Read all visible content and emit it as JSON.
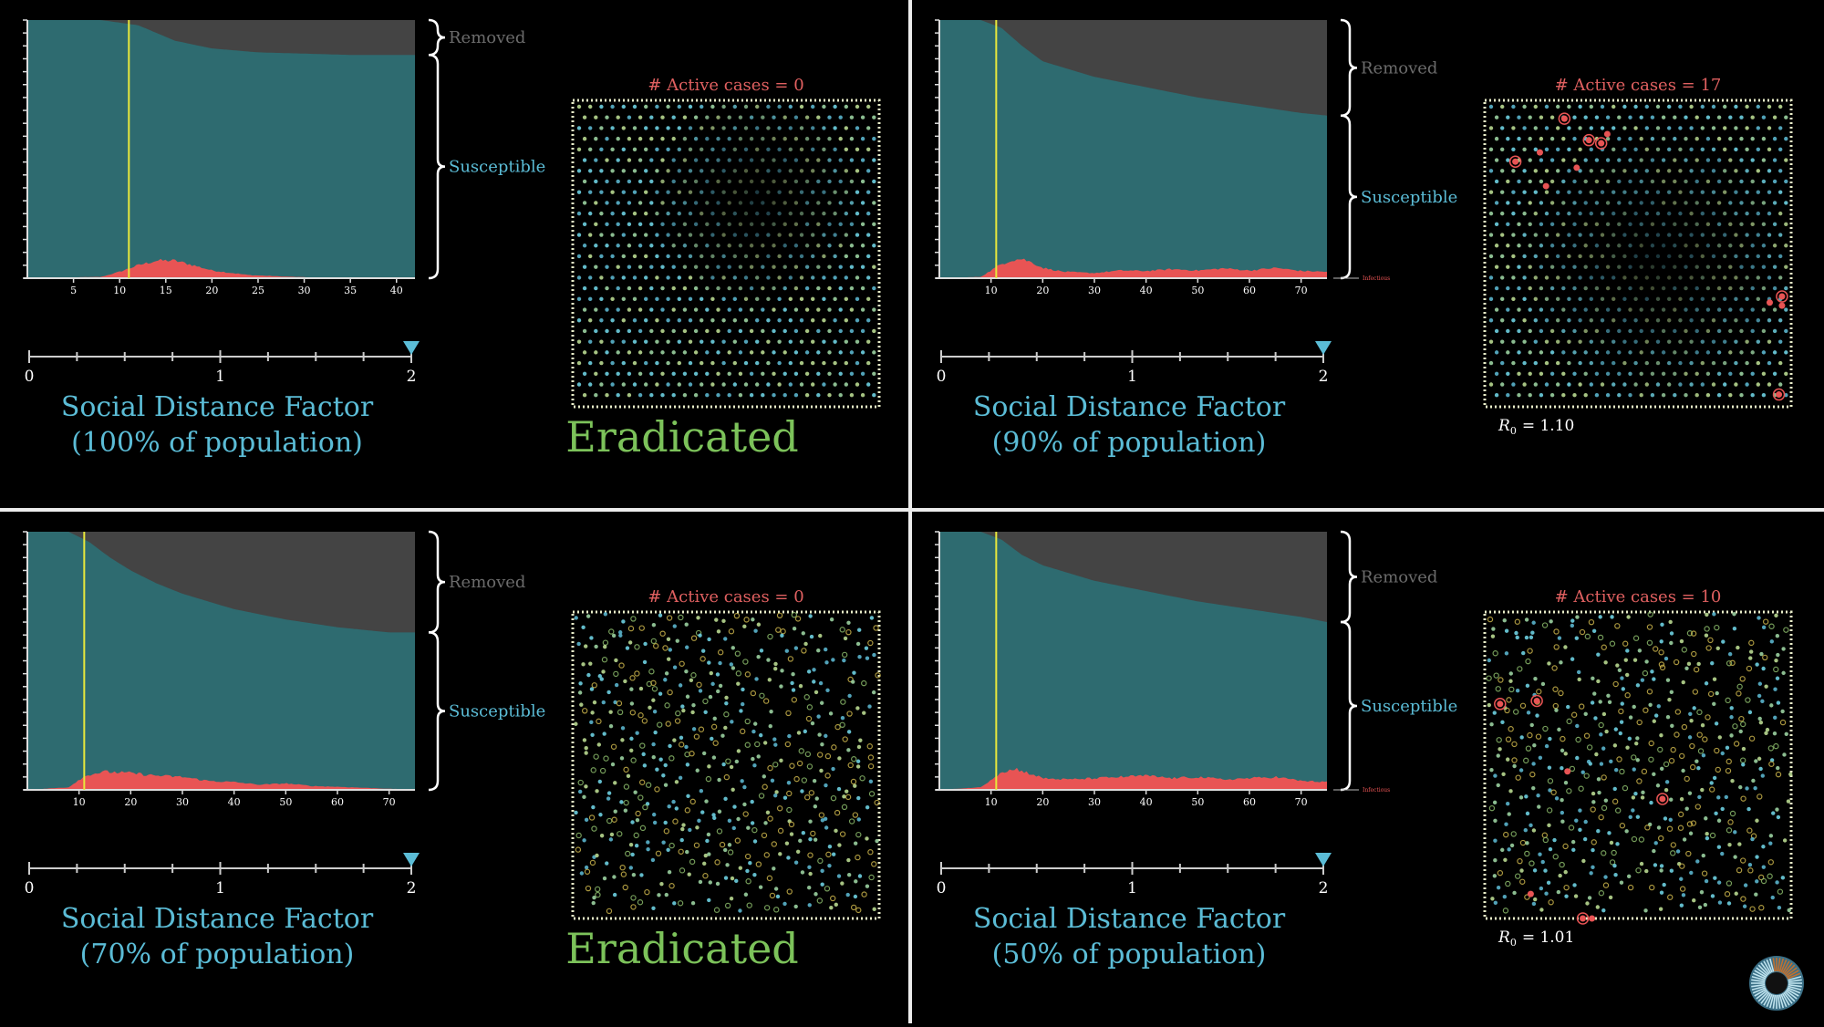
{
  "colors": {
    "background": "#000000",
    "susceptible": "#2e6b70",
    "removed": "#444444",
    "infectious": "#e85454",
    "marker_line": "#e8e83c",
    "label_blue": "#5bbcd6",
    "label_red": "#e06060",
    "eradicated_green": "#7cc25a",
    "box_border": "#e8edc8",
    "axis": "#dddddd"
  },
  "panels": [
    {
      "id": "panel-100",
      "removed_label": "Removed",
      "susceptible_label": "Susceptible",
      "infectious_label": "",
      "active_cases_label": "# Active cases = 0",
      "status_text": "Eradicated",
      "r0_text": "",
      "factor_title": "Social Distance Factor",
      "factor_subtitle": "(100% of population)",
      "slider_ticks": [
        "0",
        "1",
        "2"
      ],
      "slider_value": 2,
      "chart_data": {
        "type": "area",
        "x_ticks": [
          "5",
          "10",
          "15",
          "20",
          "25",
          "30",
          "35",
          "40"
        ],
        "x_range": [
          0,
          42
        ],
        "marker_x": 11,
        "series": [
          {
            "name": "Removed",
            "x": [
              0,
              8,
              12,
              16,
              20,
              25,
              30,
              35,
              42
            ],
            "y": [
              0,
              0,
              0.02,
              0.08,
              0.11,
              0.125,
              0.13,
              0.135,
              0.135
            ]
          },
          {
            "name": "Susceptible"
          },
          {
            "name": "Infectious",
            "x": [
              0,
              8,
              10,
              12,
              14,
              16,
              18,
              20,
              24,
              28,
              32,
              36,
              42
            ],
            "y": [
              0,
              0.005,
              0.025,
              0.05,
              0.068,
              0.068,
              0.05,
              0.03,
              0.012,
              0.006,
              0.002,
              0.001,
              0
            ]
          }
        ]
      }
    },
    {
      "id": "panel-90",
      "removed_label": "Removed",
      "susceptible_label": "Susceptible",
      "infectious_label": "Infectious",
      "active_cases_label": "# Active cases = 17",
      "status_text": "",
      "r0_text": "= 1.10",
      "factor_title": "Social Distance Factor",
      "factor_subtitle": "(90% of population)",
      "slider_ticks": [
        "0",
        "1",
        "2"
      ],
      "slider_value": 2,
      "chart_data": {
        "type": "area",
        "x_ticks": [
          "10",
          "20",
          "30",
          "40",
          "50",
          "60",
          "70"
        ],
        "x_range": [
          0,
          75
        ],
        "marker_x": 11,
        "series": [
          {
            "name": "Removed",
            "x": [
              0,
              8,
              12,
              16,
              20,
              25,
              30,
              40,
              50,
              60,
              70,
              75
            ],
            "y": [
              0,
              0,
              0.03,
              0.1,
              0.16,
              0.19,
              0.22,
              0.26,
              0.3,
              0.33,
              0.36,
              0.37
            ]
          },
          {
            "name": "Susceptible"
          },
          {
            "name": "Infectious",
            "x": [
              0,
              8,
              10,
              12,
              14,
              16,
              18,
              20,
              24,
              30,
              35,
              40,
              45,
              50,
              55,
              60,
              65,
              70,
              75
            ],
            "y": [
              0,
              0.005,
              0.03,
              0.055,
              0.07,
              0.075,
              0.06,
              0.04,
              0.025,
              0.02,
              0.03,
              0.028,
              0.035,
              0.03,
              0.038,
              0.03,
              0.04,
              0.028,
              0.025
            ]
          }
        ]
      }
    },
    {
      "id": "panel-70",
      "removed_label": "Removed",
      "susceptible_label": "Susceptible",
      "infectious_label": "",
      "active_cases_label": "# Active cases = 0",
      "status_text": "Eradicated",
      "r0_text": "",
      "factor_title": "Social Distance Factor",
      "factor_subtitle": "(70% of population)",
      "slider_ticks": [
        "0",
        "1",
        "2"
      ],
      "slider_value": 2,
      "chart_data": {
        "type": "area",
        "x_ticks": [
          "10",
          "20",
          "30",
          "40",
          "50",
          "60",
          "70"
        ],
        "x_range": [
          0,
          75
        ],
        "marker_x": 11,
        "series": [
          {
            "name": "Removed",
            "x": [
              0,
              8,
              12,
              16,
              20,
              25,
              30,
              40,
              50,
              60,
              70,
              75
            ],
            "y": [
              0,
              0,
              0.04,
              0.1,
              0.15,
              0.2,
              0.24,
              0.3,
              0.34,
              0.37,
              0.39,
              0.39
            ]
          },
          {
            "name": "Susceptible"
          },
          {
            "name": "Infectious",
            "x": [
              0,
              8,
              10,
              12,
              15,
              20,
              25,
              30,
              35,
              40,
              45,
              50,
              55,
              60,
              65,
              70,
              75
            ],
            "y": [
              0,
              0.01,
              0.04,
              0.06,
              0.07,
              0.065,
              0.055,
              0.05,
              0.035,
              0.03,
              0.02,
              0.025,
              0.015,
              0.012,
              0.008,
              0.004,
              0.002
            ]
          }
        ]
      }
    },
    {
      "id": "panel-50",
      "removed_label": "Removed",
      "susceptible_label": "Susceptible",
      "infectious_label": "Infectious",
      "active_cases_label": "# Active cases = 10",
      "status_text": "",
      "r0_text": "= 1.01",
      "factor_title": "Social Distance Factor",
      "factor_subtitle": "(50% of population)",
      "slider_ticks": [
        "0",
        "1",
        "2"
      ],
      "slider_value": 2,
      "chart_data": {
        "type": "area",
        "x_ticks": [
          "10",
          "20",
          "30",
          "40",
          "50",
          "60",
          "70"
        ],
        "x_range": [
          0,
          75
        ],
        "marker_x": 11,
        "series": [
          {
            "name": "Removed",
            "x": [
              0,
              8,
              12,
              16,
              20,
              25,
              30,
              40,
              50,
              60,
              70,
              75
            ],
            "y": [
              0,
              0,
              0.03,
              0.09,
              0.13,
              0.16,
              0.19,
              0.23,
              0.27,
              0.3,
              0.33,
              0.35
            ]
          },
          {
            "name": "Susceptible"
          },
          {
            "name": "Infectious",
            "x": [
              0,
              8,
              10,
              12,
              15,
              18,
              20,
              25,
              30,
              35,
              40,
              45,
              50,
              55,
              60,
              65,
              70,
              75
            ],
            "y": [
              0,
              0.01,
              0.04,
              0.07,
              0.08,
              0.06,
              0.045,
              0.04,
              0.045,
              0.05,
              0.055,
              0.045,
              0.05,
              0.04,
              0.045,
              0.05,
              0.035,
              0.03
            ]
          }
        ]
      }
    }
  ]
}
